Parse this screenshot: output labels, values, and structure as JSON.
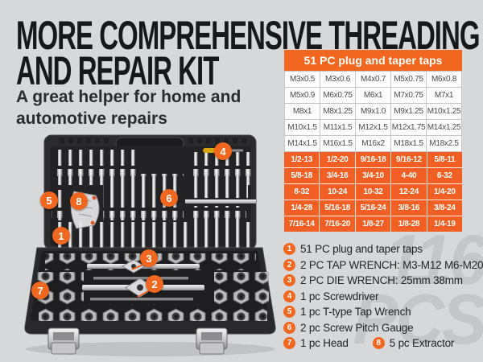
{
  "colors": {
    "background": "#d6d8da",
    "accent_orange": "#f2671f",
    "table_orange_rows": "#f15f25",
    "watermark_gray": "#c4c6c9"
  },
  "header": {
    "title_line1": "MORE COMPREHENSIVE THREADING",
    "title_line2": "AND REPAIR KIT",
    "subtitle_line1": "A great helper for home and",
    "subtitle_line2": "automotive repairs"
  },
  "watermark": {
    "line1": "116",
    "line2": "PCS"
  },
  "table": {
    "title": "51 PC plug and taper taps",
    "metric_rows": [
      [
        "M3x0.5",
        "M3x0.6",
        "M4x0.7",
        "M5x0.75",
        "M6x0.8"
      ],
      [
        "M5x0.9",
        "M6x0.75",
        "M6x1",
        "M7x0.75",
        "M7x1"
      ],
      [
        "M8x1",
        "M8x1.25",
        "M9x1.0",
        "M9x1.25",
        "M10x1.25"
      ],
      [
        "M10x1.5",
        "M11x1.5",
        "M12x1.5",
        "M12x1.75",
        "M14x1.25"
      ],
      [
        "M14x1.5",
        "M16x1.5",
        "M16x2",
        "M18x1.5",
        "M18x2.5"
      ]
    ],
    "imperial_rows": [
      [
        "1/2-13",
        "1/2-20",
        "9/16-18",
        "9/16-12",
        "5/8-11"
      ],
      [
        "5/8-18",
        "3/4-16",
        "3/4-10",
        "4-40",
        "6-32"
      ],
      [
        "8-32",
        "10-24",
        "10-32",
        "12-24",
        "1/4-20"
      ],
      [
        "1/4-28",
        "5/16-18",
        "5/16-24",
        "3/8-16",
        "3/8-24"
      ],
      [
        "7/16-14",
        "7/16-20",
        "1/8-27",
        "1/8-28",
        "1/4-19"
      ]
    ]
  },
  "legend": {
    "items": [
      {
        "num": "1",
        "text": "51 PC plug and taper taps"
      },
      {
        "num": "2",
        "text": "2 PC TAP WRENCH: M3-M12 M6-M20"
      },
      {
        "num": "3",
        "text": "2 PC DIE WRENCH: 25mm 38mm"
      },
      {
        "num": "4",
        "text": "1 pc Screwdriver"
      },
      {
        "num": "5",
        "text": "1 pc T-type Tap Wrench"
      },
      {
        "num": "6",
        "text": "2 pc Screw Pitch Gauge"
      },
      {
        "num": "7",
        "text": "1 pc Head"
      },
      {
        "num": "8",
        "text": "5 pc Extractor",
        "same_line_as_prev": true
      }
    ]
  },
  "photo": {
    "callouts": [
      {
        "num": "1"
      },
      {
        "num": "2"
      },
      {
        "num": "3"
      },
      {
        "num": "4"
      },
      {
        "num": "5"
      },
      {
        "num": "6"
      },
      {
        "num": "7"
      },
      {
        "num": "8"
      }
    ]
  }
}
